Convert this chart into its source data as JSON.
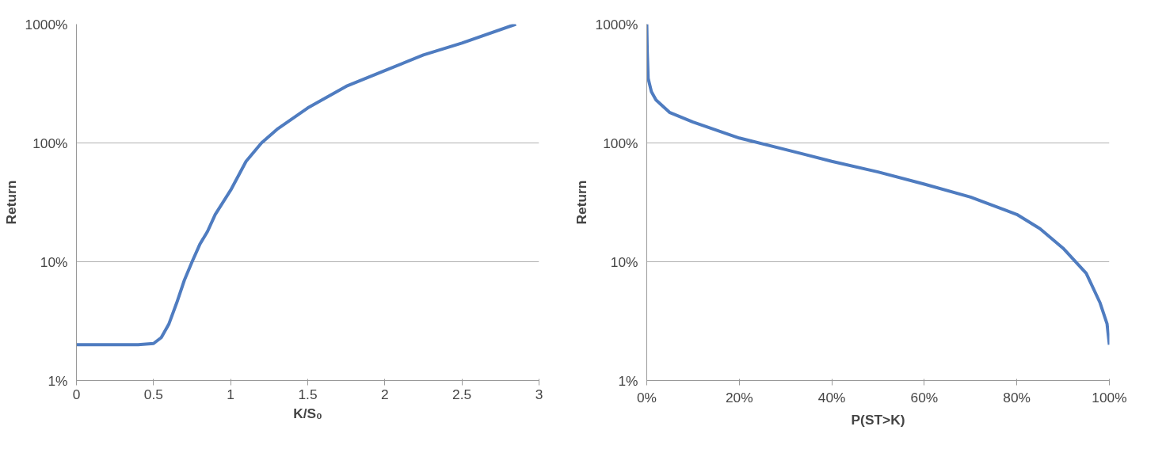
{
  "chart_data": [
    {
      "type": "line",
      "xlabel": "K/S₀",
      "ylabel": "Return",
      "log": "y",
      "grid": "y",
      "marker": "none",
      "line_style": "solid",
      "xlim": [
        0,
        3
      ],
      "xticks": [
        0,
        0.5,
        1,
        1.5,
        2,
        2.5,
        3
      ],
      "ylim": [
        1,
        1000
      ],
      "yticks": [
        {
          "value": 1,
          "label": "1%"
        },
        {
          "value": 10,
          "label": "10%"
        },
        {
          "value": 100,
          "label": "100%"
        },
        {
          "value": 1000,
          "label": "1000%"
        }
      ],
      "x": [
        0,
        0.1,
        0.2,
        0.3,
        0.4,
        0.5,
        0.55,
        0.6,
        0.65,
        0.7,
        0.75,
        0.8,
        0.85,
        0.9,
        1,
        1.1,
        1.2,
        1.3,
        1.5,
        1.75,
        2,
        2.25,
        2.5,
        2.85
      ],
      "series": [
        {
          "color": "#4f7cc0",
          "values": [
            2,
            2,
            2,
            2,
            2,
            2.05,
            2.3,
            3,
            4.5,
            7,
            10,
            14,
            18,
            25,
            40,
            70,
            100,
            130,
            197,
            300,
            407,
            550,
            693,
            1000
          ]
        }
      ]
    },
    {
      "type": "line",
      "xlabel": "P(ST>K)",
      "ylabel": "Return",
      "log": "y",
      "grid": "y",
      "marker": "none",
      "line_style": "solid",
      "xlim": [
        0,
        100
      ],
      "xticks": [
        {
          "value": 0,
          "label": "0%"
        },
        {
          "value": 20,
          "label": "20%"
        },
        {
          "value": 40,
          "label": "40%"
        },
        {
          "value": 60,
          "label": "60%"
        },
        {
          "value": 80,
          "label": "80%"
        },
        {
          "value": 100,
          "label": "100%"
        }
      ],
      "ylim": [
        1,
        1000
      ],
      "yticks": [
        {
          "value": 1,
          "label": "1%"
        },
        {
          "value": 10,
          "label": "10%"
        },
        {
          "value": 100,
          "label": "100%"
        },
        {
          "value": 1000,
          "label": "1000%"
        }
      ],
      "x": [
        0,
        0.1,
        0.3,
        1,
        2,
        5,
        10,
        20,
        30,
        40,
        50,
        60,
        70,
        80,
        85,
        90,
        95,
        98,
        99.5,
        100
      ],
      "series": [
        {
          "color": "#4f7cc0",
          "values": [
            1000,
            600,
            350,
            270,
            230,
            180,
            150,
            110,
            88,
            70,
            57,
            45,
            35,
            25,
            19,
            13,
            8,
            4.5,
            3,
            2
          ]
        }
      ]
    }
  ]
}
